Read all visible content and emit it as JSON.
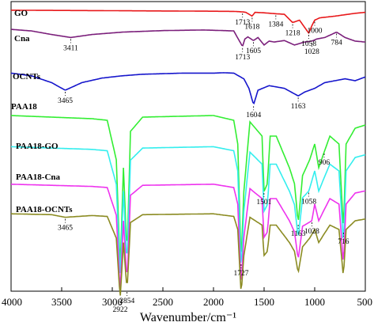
{
  "chart_data": {
    "type": "line",
    "xlabel": "Wavenumber/cm⁻¹",
    "xlim": [
      4000,
      500
    ],
    "x_ticks": [
      4000,
      3500,
      3000,
      2500,
      2000,
      1500,
      1000,
      500
    ],
    "series": [
      {
        "name": "GO",
        "color": "#e8191b",
        "points": [
          [
            4000,
            0.03
          ],
          [
            3500,
            0.04
          ],
          [
            3000,
            0.05
          ],
          [
            2600,
            0.06
          ],
          [
            2100,
            0.07
          ],
          [
            1800,
            0.08
          ],
          [
            1713,
            0.1
          ],
          [
            1680,
            0.12
          ],
          [
            1618,
            0.28
          ],
          [
            1590,
            0.12
          ],
          [
            1500,
            0.14
          ],
          [
            1384,
            0.18
          ],
          [
            1300,
            0.2
          ],
          [
            1218,
            0.55
          ],
          [
            1150,
            0.45
          ],
          [
            1058,
            1.0
          ],
          [
            1030,
            0.7
          ],
          [
            1000,
            0.45
          ],
          [
            950,
            0.35
          ],
          [
            800,
            0.28
          ],
          [
            700,
            0.22
          ],
          [
            600,
            0.16
          ],
          [
            500,
            0.12
          ]
        ]
      },
      {
        "name": "Cna",
        "color": "#7b1f7b",
        "points": [
          [
            4000,
            0.03
          ],
          [
            3800,
            0.08
          ],
          [
            3600,
            0.2
          ],
          [
            3411,
            0.3
          ],
          [
            3200,
            0.2
          ],
          [
            2900,
            0.12
          ],
          [
            2500,
            0.07
          ],
          [
            2100,
            0.05
          ],
          [
            1800,
            0.08
          ],
          [
            1713,
            0.6
          ],
          [
            1690,
            0.35
          ],
          [
            1660,
            0.28
          ],
          [
            1605,
            0.4
          ],
          [
            1560,
            0.3
          ],
          [
            1500,
            0.55
          ],
          [
            1450,
            0.42
          ],
          [
            1400,
            0.45
          ],
          [
            1300,
            0.4
          ],
          [
            1200,
            0.55
          ],
          [
            1100,
            0.45
          ],
          [
            1028,
            0.42
          ],
          [
            980,
            0.35
          ],
          [
            900,
            0.3
          ],
          [
            784,
            0.12
          ],
          [
            700,
            0.3
          ],
          [
            600,
            0.42
          ],
          [
            500,
            0.45
          ]
        ]
      },
      {
        "name": "OCNTs",
        "color": "#1616cc",
        "points": [
          [
            4000,
            0.05
          ],
          [
            3800,
            0.12
          ],
          [
            3600,
            0.3
          ],
          [
            3465,
            0.5
          ],
          [
            3300,
            0.3
          ],
          [
            3100,
            0.18
          ],
          [
            2900,
            0.12
          ],
          [
            2700,
            0.08
          ],
          [
            2300,
            0.05
          ],
          [
            2000,
            0.05
          ],
          [
            1900,
            0.04
          ],
          [
            1800,
            0.05
          ],
          [
            1700,
            0.2
          ],
          [
            1650,
            0.45
          ],
          [
            1604,
            0.88
          ],
          [
            1560,
            0.5
          ],
          [
            1450,
            0.38
          ],
          [
            1300,
            0.45
          ],
          [
            1163,
            0.65
          ],
          [
            1100,
            0.55
          ],
          [
            1000,
            0.45
          ],
          [
            900,
            0.3
          ],
          [
            800,
            0.25
          ],
          [
            700,
            0.2
          ],
          [
            600,
            0.25
          ],
          [
            500,
            0.15
          ]
        ]
      },
      {
        "name": "PAA18",
        "color": "#33ee33",
        "points": [
          [
            4000,
            0.02
          ],
          [
            3600,
            0.03
          ],
          [
            3200,
            0.04
          ],
          [
            3050,
            0.05
          ],
          [
            2960,
            0.3
          ],
          [
            2922,
            1.0
          ],
          [
            2890,
            0.35
          ],
          [
            2854,
            0.9
          ],
          [
            2820,
            0.12
          ],
          [
            2700,
            0.03
          ],
          [
            2000,
            0.02
          ],
          [
            1800,
            0.05
          ],
          [
            1760,
            0.2
          ],
          [
            1727,
            0.95
          ],
          [
            1700,
            0.5
          ],
          [
            1640,
            0.06
          ],
          [
            1520,
            0.15
          ],
          [
            1501,
            0.5
          ],
          [
            1467,
            0.45
          ],
          [
            1440,
            0.15
          ],
          [
            1380,
            0.15
          ],
          [
            1250,
            0.35
          ],
          [
            1200,
            0.45
          ],
          [
            1163,
            0.7
          ],
          [
            1120,
            0.4
          ],
          [
            1050,
            0.3
          ],
          [
            1000,
            0.2
          ],
          [
            960,
            0.35
          ],
          [
            906,
            0.25
          ],
          [
            850,
            0.15
          ],
          [
            760,
            0.2
          ],
          [
            716,
            0.75
          ],
          [
            690,
            0.2
          ],
          [
            600,
            0.1
          ],
          [
            500,
            0.08
          ]
        ]
      },
      {
        "name": "PAA18-GO",
        "color": "#33eeee",
        "points": [
          [
            4000,
            0.02
          ],
          [
            3600,
            0.03
          ],
          [
            3200,
            0.04
          ],
          [
            3050,
            0.05
          ],
          [
            2960,
            0.3
          ],
          [
            2922,
            1.0
          ],
          [
            2890,
            0.35
          ],
          [
            2854,
            0.9
          ],
          [
            2820,
            0.12
          ],
          [
            2700,
            0.03
          ],
          [
            2000,
            0.02
          ],
          [
            1800,
            0.05
          ],
          [
            1760,
            0.2
          ],
          [
            1727,
            0.95
          ],
          [
            1700,
            0.5
          ],
          [
            1640,
            0.06
          ],
          [
            1520,
            0.15
          ],
          [
            1501,
            0.5
          ],
          [
            1467,
            0.45
          ],
          [
            1440,
            0.15
          ],
          [
            1380,
            0.15
          ],
          [
            1250,
            0.35
          ],
          [
            1200,
            0.45
          ],
          [
            1163,
            0.7
          ],
          [
            1120,
            0.4
          ],
          [
            1058,
            0.35
          ],
          [
            1000,
            0.2
          ],
          [
            960,
            0.35
          ],
          [
            906,
            0.25
          ],
          [
            850,
            0.15
          ],
          [
            760,
            0.2
          ],
          [
            716,
            0.75
          ],
          [
            690,
            0.2
          ],
          [
            600,
            0.1
          ],
          [
            500,
            0.08
          ]
        ]
      },
      {
        "name": "PAA18-Cna",
        "color": "#ee33ee",
        "points": [
          [
            4000,
            0.02
          ],
          [
            3600,
            0.03
          ],
          [
            3200,
            0.04
          ],
          [
            3050,
            0.05
          ],
          [
            2960,
            0.3
          ],
          [
            2922,
            1.0
          ],
          [
            2890,
            0.35
          ],
          [
            2854,
            0.9
          ],
          [
            2820,
            0.12
          ],
          [
            2700,
            0.03
          ],
          [
            2000,
            0.02
          ],
          [
            1800,
            0.05
          ],
          [
            1760,
            0.2
          ],
          [
            1727,
            0.95
          ],
          [
            1700,
            0.5
          ],
          [
            1640,
            0.06
          ],
          [
            1520,
            0.15
          ],
          [
            1501,
            0.5
          ],
          [
            1467,
            0.45
          ],
          [
            1440,
            0.15
          ],
          [
            1380,
            0.15
          ],
          [
            1250,
            0.35
          ],
          [
            1200,
            0.45
          ],
          [
            1163,
            0.7
          ],
          [
            1120,
            0.4
          ],
          [
            1028,
            0.35
          ],
          [
            1000,
            0.2
          ],
          [
            960,
            0.35
          ],
          [
            906,
            0.25
          ],
          [
            850,
            0.15
          ],
          [
            760,
            0.2
          ],
          [
            716,
            0.75
          ],
          [
            690,
            0.2
          ],
          [
            600,
            0.1
          ],
          [
            500,
            0.08
          ]
        ]
      },
      {
        "name": "PAA18-OCNTs",
        "color": "#8b8b22",
        "points": [
          [
            4000,
            0.02
          ],
          [
            3600,
            0.03
          ],
          [
            3465,
            0.06
          ],
          [
            3200,
            0.04
          ],
          [
            3050,
            0.05
          ],
          [
            2960,
            0.3
          ],
          [
            2922,
            1.0
          ],
          [
            2890,
            0.35
          ],
          [
            2854,
            0.9
          ],
          [
            2820,
            0.12
          ],
          [
            2700,
            0.03
          ],
          [
            2000,
            0.02
          ],
          [
            1800,
            0.05
          ],
          [
            1760,
            0.2
          ],
          [
            1727,
            0.95
          ],
          [
            1700,
            0.5
          ],
          [
            1640,
            0.06
          ],
          [
            1520,
            0.15
          ],
          [
            1501,
            0.5
          ],
          [
            1467,
            0.45
          ],
          [
            1440,
            0.15
          ],
          [
            1380,
            0.15
          ],
          [
            1250,
            0.35
          ],
          [
            1200,
            0.45
          ],
          [
            1163,
            0.7
          ],
          [
            1120,
            0.4
          ],
          [
            1050,
            0.3
          ],
          [
            1000,
            0.2
          ],
          [
            960,
            0.35
          ],
          [
            906,
            0.25
          ],
          [
            850,
            0.15
          ],
          [
            760,
            0.2
          ],
          [
            716,
            0.75
          ],
          [
            690,
            0.2
          ],
          [
            600,
            0.1
          ],
          [
            500,
            0.08
          ]
        ]
      }
    ],
    "annotations": [
      {
        "text": "1713",
        "series": "GO",
        "x": 1713
      },
      {
        "text": "1618",
        "series": "GO",
        "x": 1618
      },
      {
        "text": "1384",
        "series": "GO",
        "x": 1384
      },
      {
        "text": "1218",
        "series": "GO",
        "x": 1218
      },
      {
        "text": "1058",
        "series": "GO",
        "x": 1058
      },
      {
        "text": "1000",
        "series": "GO",
        "x": 1000
      },
      {
        "text": "3411",
        "series": "Cna",
        "x": 3411
      },
      {
        "text": "1605",
        "series": "Cna",
        "x": 1605
      },
      {
        "text": "1713",
        "series": "Cna",
        "x": 1713
      },
      {
        "text": "1028",
        "series": "Cna",
        "x": 1028
      },
      {
        "text": "784",
        "series": "Cna",
        "x": 784
      },
      {
        "text": "3465",
        "series": "OCNTs",
        "x": 3465
      },
      {
        "text": "1604",
        "series": "OCNTs",
        "x": 1604
      },
      {
        "text": "1163",
        "series": "OCNTs",
        "x": 1163
      },
      {
        "text": "1727",
        "series": "PAA18",
        "x": 1727
      },
      {
        "text": "1501",
        "series": "PAA18",
        "x": 1501
      },
      {
        "text": "906",
        "series": "PAA18",
        "x": 906
      },
      {
        "text": "1163",
        "series": "PAA18",
        "x": 1163
      },
      {
        "text": "716",
        "series": "PAA18",
        "x": 716
      },
      {
        "text": "1058",
        "series": "PAA18-GO",
        "x": 1058
      },
      {
        "text": "1028",
        "series": "PAA18-Cna",
        "x": 1028
      },
      {
        "text": "3465",
        "series": "PAA18-OCNTs",
        "x": 3465
      },
      {
        "text": "2922",
        "series": "PAA18-OCNTs",
        "x": 2922
      },
      {
        "text": "2854",
        "series": "PAA18-OCNTs",
        "x": 2854
      }
    ]
  }
}
